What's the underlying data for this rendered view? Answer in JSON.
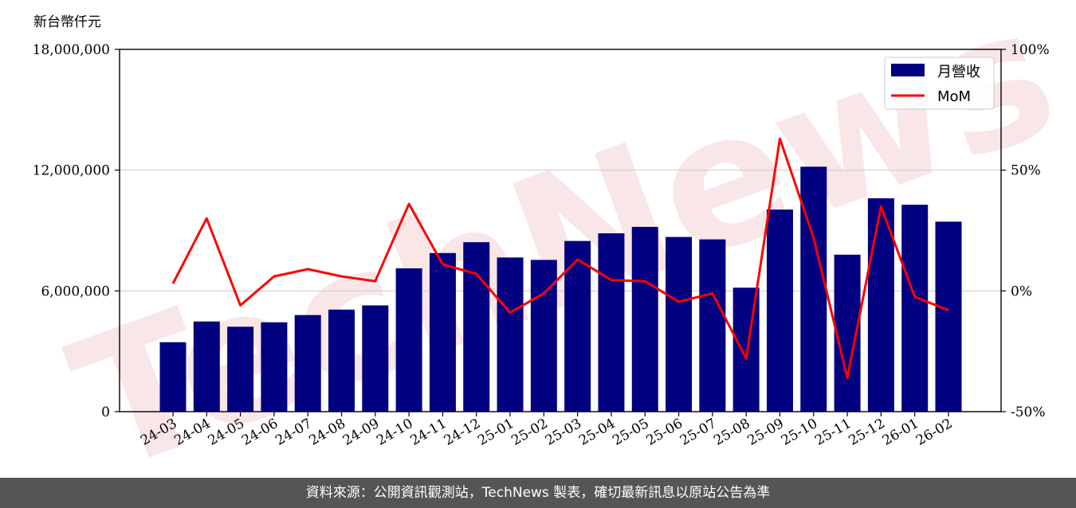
{
  "chart_data": {
    "type": "bar",
    "unit_label": "新台幣仟元",
    "categories": [
      "24-03",
      "24-04",
      "24-05",
      "24-06",
      "24-07",
      "24-08",
      "24-09",
      "24-10",
      "24-11",
      "24-12",
      "25-01",
      "25-02",
      "25-03",
      "25-04",
      "25-05",
      "25-06",
      "25-07",
      "25-08",
      "25-09",
      "25-10",
      "25-11",
      "25-12",
      "26-01",
      "26-02"
    ],
    "series": [
      {
        "name": "月營收",
        "type": "bar",
        "axis": "left",
        "color": "#000080",
        "values": [
          3450000,
          4480000,
          4220000,
          4440000,
          4800000,
          5070000,
          5280000,
          7120000,
          7880000,
          8420000,
          7660000,
          7540000,
          8480000,
          8860000,
          9180000,
          8680000,
          8560000,
          6160000,
          10040000,
          12170000,
          7800000,
          10600000,
          10280000,
          9440000
        ]
      },
      {
        "name": "MoM",
        "type": "line",
        "axis": "right",
        "color": "#ff0000",
        "values": [
          3,
          30,
          -6,
          6,
          9,
          6,
          4,
          36,
          11,
          7,
          -9,
          -1,
          13,
          4.5,
          4,
          -4.5,
          -1,
          -28,
          63,
          22,
          -36,
          35,
          -2.5,
          -8
        ]
      }
    ],
    "y_left": {
      "min": 0,
      "max": 18000000,
      "ticks": [
        0,
        6000000,
        12000000,
        18000000
      ],
      "tick_labels": [
        "0",
        "6,000,000",
        "12,000,000",
        "18,000,000"
      ]
    },
    "y_right": {
      "min": -50,
      "max": 100,
      "ticks": [
        -50,
        0,
        50,
        100
      ],
      "tick_labels": [
        "-50%",
        "0%",
        "50%",
        "100%"
      ]
    },
    "grid": "horizontal",
    "legend_position": "top-right",
    "watermark": "TechNews"
  },
  "footer": {
    "source_note": "資料來源：公開資訊觀測站，TechNews 製表，確切最新訊息以原站公告為準"
  }
}
